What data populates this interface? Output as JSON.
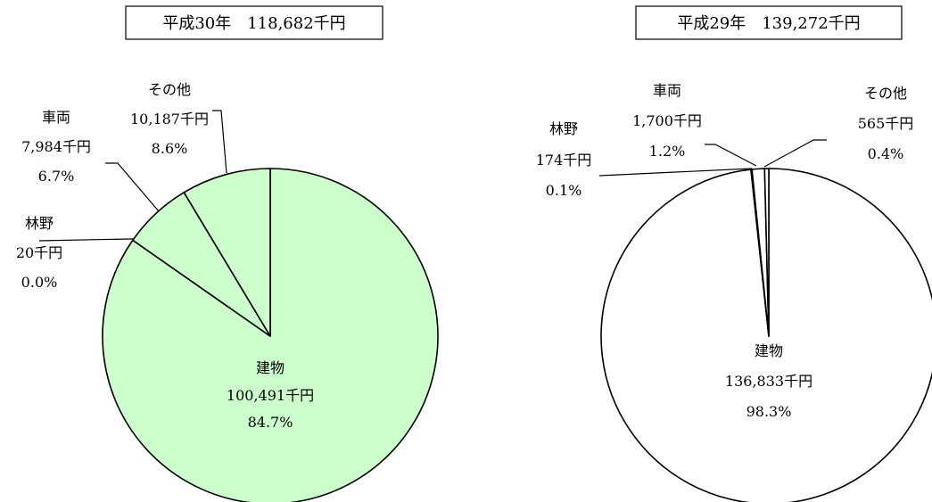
{
  "chart_data": [
    {
      "type": "pie",
      "title": "平成30年　118,682千円",
      "slices": [
        {
          "category": "建物",
          "amount": "100,491千円",
          "percent": "84.7%",
          "value": 84.7,
          "color": "#ccffcc"
        },
        {
          "category": "林野",
          "amount": "20千円",
          "percent": "0.0%",
          "value": 0.0,
          "color": "#ccffcc"
        },
        {
          "category": "車両",
          "amount": "7,984千円",
          "percent": "6.7%",
          "value": 6.7,
          "color": "#ccffcc"
        },
        {
          "category": "その他",
          "amount": "10,187千円",
          "percent": "8.6%",
          "value": 8.6,
          "color": "#ccffcc"
        }
      ]
    },
    {
      "type": "pie",
      "title": "平成29年　139,272千円",
      "slices": [
        {
          "category": "建物",
          "amount": "136,833千円",
          "percent": "98.3%",
          "value": 98.3,
          "color": "#ffffff"
        },
        {
          "category": "林野",
          "amount": "174千円",
          "percent": "0.1%",
          "value": 0.1,
          "color": "#ffffff"
        },
        {
          "category": "車両",
          "amount": "1,700千円",
          "percent": "1.2%",
          "value": 1.2,
          "color": "#ffffff"
        },
        {
          "category": "その他",
          "amount": "565千円",
          "percent": "0.4%",
          "value": 0.4,
          "color": "#ffffff"
        }
      ]
    }
  ]
}
